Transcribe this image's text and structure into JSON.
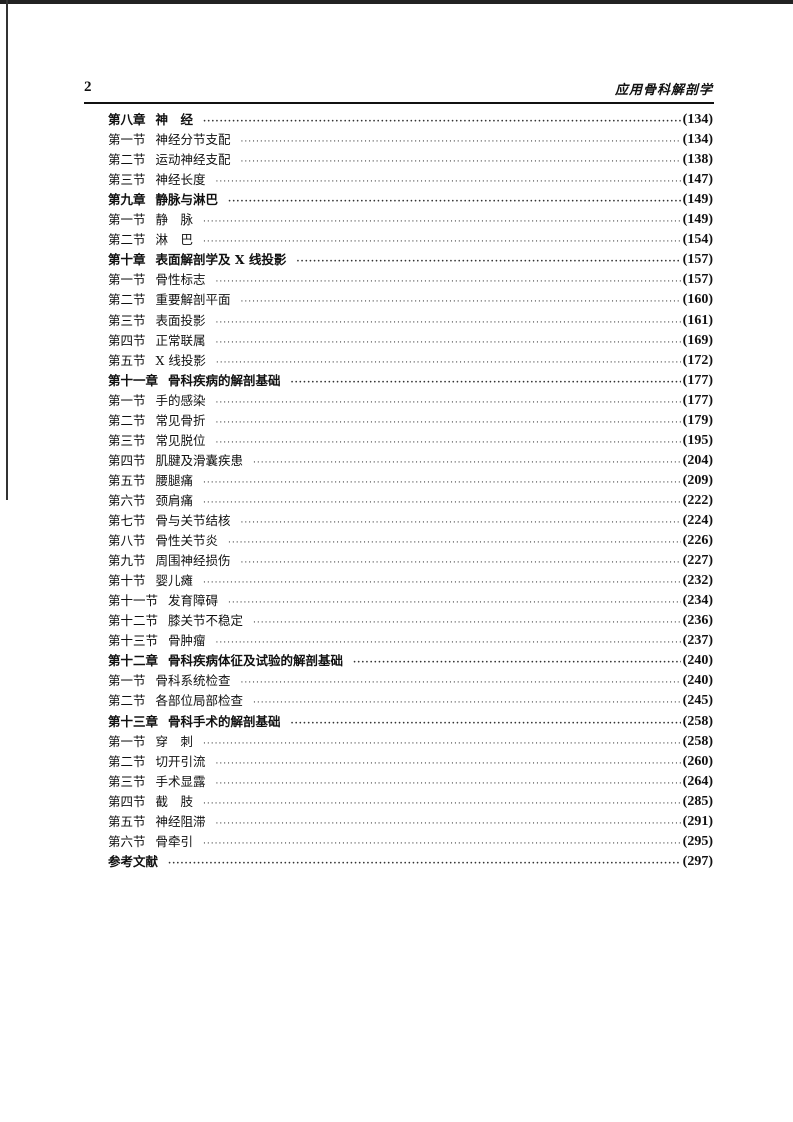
{
  "header": {
    "page_number": "2",
    "book_title": "应用骨科解剖学"
  },
  "entries": [
    {
      "label": "第八章",
      "title": "神　经",
      "page": "(134)",
      "chapter": true
    },
    {
      "label": "第一节",
      "title": "神经分节支配",
      "page": "(134)"
    },
    {
      "label": "第二节",
      "title": "运动神经支配",
      "page": "(138)"
    },
    {
      "label": "第三节",
      "title": "神经长度",
      "page": "(147)"
    },
    {
      "label": "第九章",
      "title": "静脉与淋巴",
      "page": "(149)",
      "chapter": true
    },
    {
      "label": "第一节",
      "title": "静　脉",
      "page": "(149)"
    },
    {
      "label": "第二节",
      "title": "淋　巴",
      "page": "(154)"
    },
    {
      "label": "第十章",
      "title": "表面解剖学及 X 线投影",
      "page": "(157)",
      "chapter": true
    },
    {
      "label": "第一节",
      "title": "骨性标志",
      "page": "(157)"
    },
    {
      "label": "第二节",
      "title": "重要解剖平面",
      "page": "(160)"
    },
    {
      "label": "第三节",
      "title": "表面投影",
      "page": "(161)"
    },
    {
      "label": "第四节",
      "title": "正常联属",
      "page": "(169)"
    },
    {
      "label": "第五节",
      "title": "X 线投影",
      "page": "(172)"
    },
    {
      "label": "第十一章",
      "title": "骨科疾病的解剖基础",
      "page": "(177)",
      "chapter": true
    },
    {
      "label": "第一节",
      "title": "手的感染",
      "page": "(177)"
    },
    {
      "label": "第二节",
      "title": "常见骨折",
      "page": "(179)"
    },
    {
      "label": "第三节",
      "title": "常见脱位",
      "page": "(195)"
    },
    {
      "label": "第四节",
      "title": "肌腱及滑囊疾患",
      "page": "(204)"
    },
    {
      "label": "第五节",
      "title": "腰腿痛",
      "page": "(209)"
    },
    {
      "label": "第六节",
      "title": "颈肩痛",
      "page": "(222)"
    },
    {
      "label": "第七节",
      "title": "骨与关节结核",
      "page": "(224)"
    },
    {
      "label": "第八节",
      "title": "骨性关节炎",
      "page": "(226)"
    },
    {
      "label": "第九节",
      "title": "周围神经损伤",
      "page": "(227)"
    },
    {
      "label": "第十节",
      "title": "婴儿瘫",
      "page": "(232)"
    },
    {
      "label": "第十一节",
      "title": "发育障碍",
      "page": "(234)"
    },
    {
      "label": "第十二节",
      "title": "膝关节不稳定",
      "page": "(236)"
    },
    {
      "label": "第十三节",
      "title": "骨肿瘤",
      "page": "(237)"
    },
    {
      "label": "第十二章",
      "title": "骨科疾病体征及试验的解剖基础",
      "page": "(240)",
      "chapter": true
    },
    {
      "label": "第一节",
      "title": "骨科系统检查",
      "page": "(240)"
    },
    {
      "label": "第二节",
      "title": "各部位局部检查",
      "page": "(245)"
    },
    {
      "label": "第十三章",
      "title": "骨科手术的解剖基础",
      "page": "(258)",
      "chapter": true
    },
    {
      "label": "第一节",
      "title": "穿　刺",
      "page": "(258)"
    },
    {
      "label": "第二节",
      "title": "切开引流",
      "page": "(260)"
    },
    {
      "label": "第三节",
      "title": "手术显露",
      "page": "(264)"
    },
    {
      "label": "第四节",
      "title": "截　肢",
      "page": "(285)"
    },
    {
      "label": "第五节",
      "title": "神经阻滞",
      "page": "(291)"
    },
    {
      "label": "第六节",
      "title": "骨牵引",
      "page": "(295)"
    },
    {
      "label": "参考文献",
      "title": "",
      "page": "(297)",
      "chapter": true
    }
  ]
}
